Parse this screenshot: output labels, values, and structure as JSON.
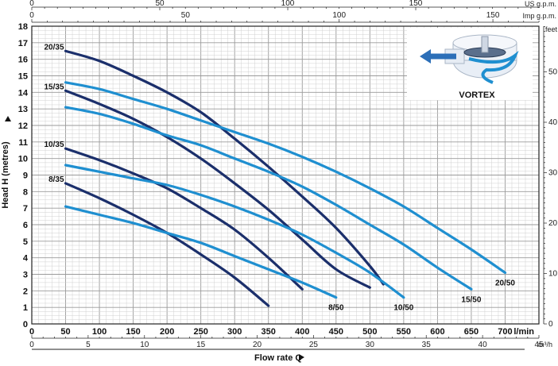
{
  "chart_data": {
    "type": "line",
    "xlabel": "Flow rate Q",
    "ylabel": "Head H (metres)",
    "x_unit": "l/min",
    "xlim": [
      0,
      750
    ],
    "ylim": [
      0,
      18
    ],
    "x_ticks": [
      0,
      50,
      100,
      150,
      200,
      250,
      300,
      350,
      400,
      450,
      500,
      550,
      600,
      650,
      700
    ],
    "y_ticks": [
      0,
      1,
      2,
      3,
      4,
      5,
      6,
      7,
      8,
      9,
      10,
      11,
      12,
      13,
      14,
      15,
      16,
      17,
      18
    ],
    "secondary_axes": {
      "top_us": {
        "unit": "US g.p.m.",
        "ticks": [
          0,
          50,
          100,
          150
        ]
      },
      "top_imp": {
        "unit": "Imp g.p.m.",
        "ticks": [
          0,
          50,
          100,
          150
        ]
      },
      "bottom_m3h": {
        "unit": "m³/h",
        "ticks": [
          0,
          5,
          10,
          15,
          20,
          25,
          30,
          35,
          40,
          45
        ]
      },
      "right_feet": {
        "unit": "feet",
        "ticks": [
          0,
          10,
          20,
          30,
          40,
          50
        ]
      }
    },
    "inset_label": "VORTEX",
    "series": [
      {
        "name": "20/35",
        "color": "#1b2f6b",
        "x": [
          50,
          100,
          150,
          200,
          250,
          300,
          350,
          400,
          450,
          500,
          520
        ],
        "y": [
          16.5,
          15.9,
          15.0,
          14.0,
          12.8,
          11.2,
          9.5,
          7.7,
          5.8,
          3.5,
          2.4
        ]
      },
      {
        "name": "15/35",
        "color": "#1b2f6b",
        "x": [
          50,
          100,
          150,
          200,
          250,
          300,
          350,
          400,
          450,
          500
        ],
        "y": [
          14.1,
          13.3,
          12.4,
          11.3,
          10.0,
          8.5,
          6.9,
          5.1,
          3.3,
          2.2
        ]
      },
      {
        "name": "10/35",
        "color": "#1b2f6b",
        "x": [
          50,
          100,
          150,
          200,
          250,
          300,
          350,
          400
        ],
        "y": [
          10.6,
          9.9,
          9.1,
          8.2,
          7.0,
          5.7,
          4.0,
          2.1
        ]
      },
      {
        "name": "8/35",
        "color": "#1b2f6b",
        "x": [
          50,
          100,
          150,
          200,
          250,
          300,
          350
        ],
        "y": [
          8.5,
          7.6,
          6.6,
          5.5,
          4.2,
          2.8,
          1.1
        ]
      },
      {
        "name": "20/50",
        "color": "#1f8fd0",
        "x": [
          50,
          100,
          150,
          200,
          250,
          300,
          350,
          400,
          450,
          500,
          550,
          600,
          650,
          700
        ],
        "y": [
          14.6,
          14.2,
          13.6,
          13.0,
          12.3,
          11.6,
          10.9,
          10.1,
          9.2,
          8.2,
          7.1,
          5.8,
          4.5,
          3.1
        ]
      },
      {
        "name": "15/50",
        "color": "#1f8fd0",
        "x": [
          50,
          100,
          150,
          200,
          250,
          300,
          350,
          400,
          450,
          500,
          550,
          600,
          650
        ],
        "y": [
          13.1,
          12.7,
          12.1,
          11.4,
          10.8,
          10.0,
          9.2,
          8.3,
          7.2,
          6.0,
          4.8,
          3.4,
          2.1
        ]
      },
      {
        "name": "10/50",
        "color": "#1f8fd0",
        "x": [
          50,
          100,
          150,
          200,
          250,
          300,
          350,
          400,
          450,
          500,
          550
        ],
        "y": [
          9.6,
          9.2,
          8.8,
          8.4,
          7.8,
          7.1,
          6.3,
          5.4,
          4.3,
          3.1,
          1.6
        ]
      },
      {
        "name": "8/50",
        "color": "#1f8fd0",
        "x": [
          50,
          100,
          150,
          200,
          250,
          300,
          350,
          400,
          450
        ],
        "y": [
          7.1,
          6.6,
          6.1,
          5.5,
          4.9,
          4.1,
          3.3,
          2.5,
          1.6
        ]
      }
    ]
  }
}
